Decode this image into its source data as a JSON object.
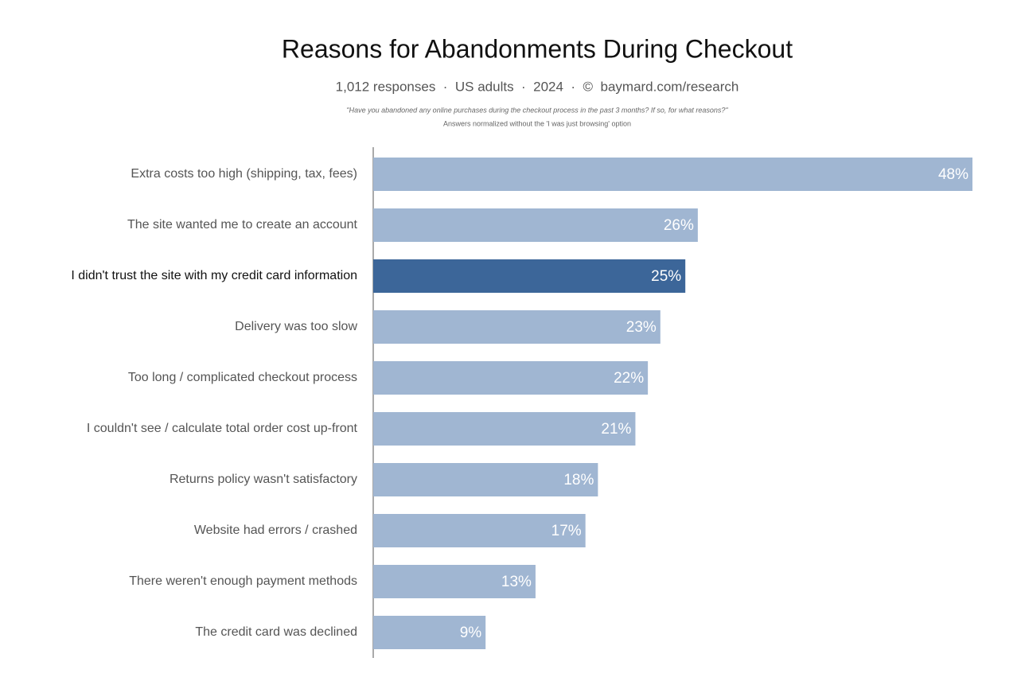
{
  "chart_data": {
    "type": "bar",
    "orientation": "horizontal",
    "title": "Reasons for Abandonments During Checkout",
    "subtitle": "1,012 responses  ·  US adults  ·  2024  ·  ©  baymard.com/research",
    "notes": [
      "\"Have you abandoned any online purchases during the checkout process in the past 3 months? If so, for what reasons?\"",
      "Answers normalized without the 'I was just browsing' option"
    ],
    "categories": [
      "Extra costs too high (shipping, tax, fees)",
      "The site wanted me to create an account",
      "I didn't trust the site with my credit card information",
      "Delivery was too slow",
      "Too long / complicated checkout process",
      "I couldn't see / calculate total order cost up-front",
      "Returns policy wasn't satisfactory",
      "Website had errors / crashed",
      "There weren't enough payment methods",
      "The credit card was declined"
    ],
    "values": [
      48,
      26,
      25,
      23,
      22,
      21,
      18,
      17,
      13,
      9
    ],
    "value_labels": [
      "48%",
      "26%",
      "25%",
      "23%",
      "22%",
      "21%",
      "18%",
      "17%",
      "13%",
      "9%"
    ],
    "color": "#a0b6d2",
    "highlight": 2,
    "highlight_color": "#3c6699"
  }
}
